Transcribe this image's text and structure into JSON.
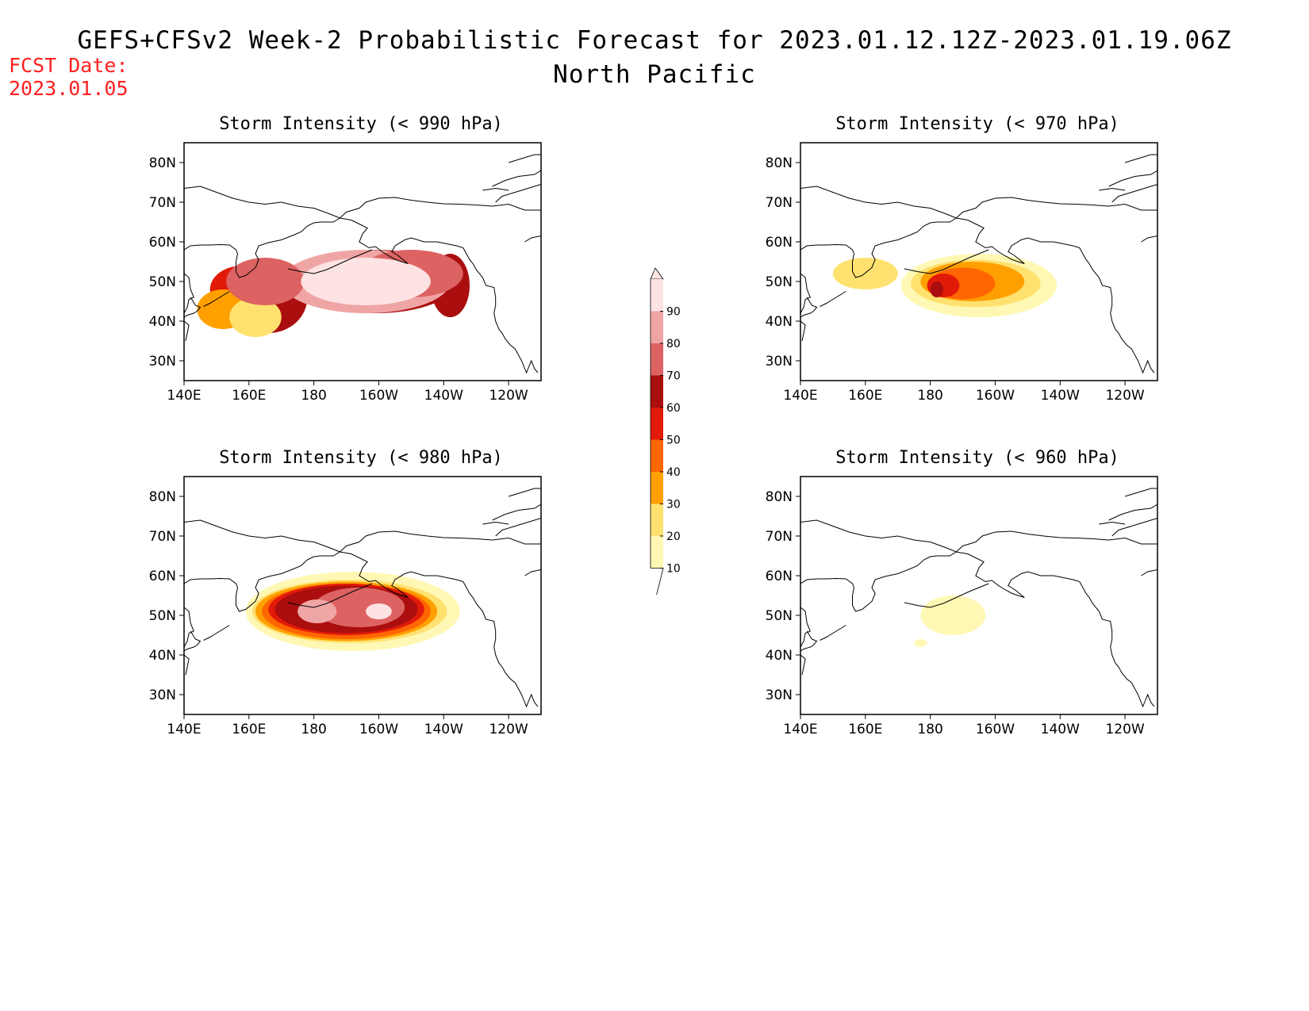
{
  "title": "GEFS+CFSv2 Week-2 Probabilistic Forecast for 2023.01.12.12Z-2023.01.19.06Z",
  "subtitle": "North Pacific",
  "fcst_date": {
    "label": "FCST Date:",
    "value": "2023.01.05"
  },
  "map": {
    "lon_ticks": [
      "140E",
      "160E",
      "180",
      "160W",
      "140W",
      "120W"
    ],
    "lat_ticks": [
      "80N",
      "70N",
      "60N",
      "50N",
      "40N",
      "30N"
    ],
    "lon_range_deg_east": [
      140,
      250
    ],
    "lat_range_deg": [
      25,
      85
    ]
  },
  "panels": [
    {
      "title": "Storm Intensity (< 990 hPa)",
      "threshold": "< 990 hPa",
      "probability_range_percent": [
        10,
        100
      ],
      "dominant_percent": 90,
      "core_region": {
        "lon": [
          175,
          220
        ],
        "lat": [
          42,
          57
        ]
      }
    },
    {
      "title": "Storm Intensity (< 970 hPa)",
      "threshold": "< 970 hPa",
      "probability_range_percent": [
        10,
        70
      ],
      "dominant_percent": 40,
      "core_region": {
        "lon": [
          178,
          205
        ],
        "lat": [
          45,
          53
        ]
      }
    },
    {
      "title": "Storm Intensity (< 980 hPa)",
      "threshold": "< 980 hPa",
      "probability_range_percent": [
        10,
        90
      ],
      "dominant_percent": 70,
      "core_region": {
        "lon": [
          165,
          215
        ],
        "lat": [
          42,
          58
        ]
      }
    },
    {
      "title": "Storm Intensity (< 960 hPa)",
      "threshold": "< 960 hPa",
      "probability_range_percent": [
        10,
        20
      ],
      "dominant_percent": 10,
      "core_region": {
        "lon": [
          175,
          198
        ],
        "lat": [
          43,
          55
        ]
      }
    }
  ],
  "colorbar": {
    "labels": [
      "90",
      "80",
      "70",
      "60",
      "50",
      "40",
      "30",
      "20",
      "10"
    ],
    "colors": [
      "#fde3e3",
      "#f0a5a5",
      "#dd6363",
      "#aa0e0e",
      "#e21a0a",
      "#ff6500",
      "#ffa000",
      "#ffe170",
      "#fff8b4"
    ]
  }
}
